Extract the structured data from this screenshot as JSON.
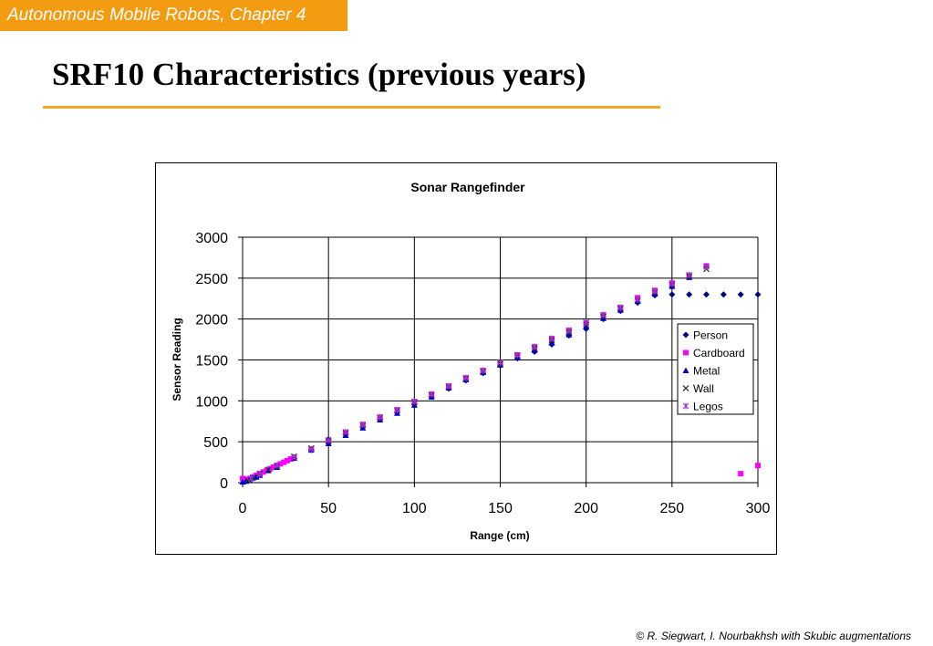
{
  "header": {
    "chapter_label": "Autonomous Mobile Robots, Chapter 4",
    "slide_title": "SRF10 Characteristics (previous years)"
  },
  "footer": {
    "credit": "© R. Siegwart, I. Nourbakhsh with Skubic augmentations"
  },
  "colors": {
    "accent": "#f39c12",
    "rule": "#f5a623"
  },
  "chart_data": {
    "type": "scatter",
    "title": "Sonar Rangefinder",
    "xlabel": "Range (cm)",
    "ylabel": "Sensor Reading",
    "xlim": [
      0,
      300
    ],
    "ylim": [
      0,
      3000
    ],
    "xticks": [
      0,
      50,
      100,
      150,
      200,
      250,
      300
    ],
    "yticks": [
      0,
      500,
      1000,
      1500,
      2000,
      2500,
      3000
    ],
    "grid": true,
    "legend": "right",
    "series": [
      {
        "name": "Person",
        "marker": "diamond",
        "color": "#000080",
        "points": [
          [
            2,
            20
          ],
          [
            4,
            40
          ],
          [
            6,
            60
          ],
          [
            8,
            80
          ],
          [
            10,
            100
          ],
          [
            15,
            150
          ],
          [
            20,
            200
          ],
          [
            30,
            300
          ],
          [
            40,
            400
          ],
          [
            50,
            530
          ],
          [
            60,
            600
          ],
          [
            70,
            690
          ],
          [
            80,
            780
          ],
          [
            90,
            860
          ],
          [
            100,
            960
          ],
          [
            110,
            1050
          ],
          [
            120,
            1150
          ],
          [
            130,
            1250
          ],
          [
            140,
            1340
          ],
          [
            150,
            1430
          ],
          [
            160,
            1520
          ],
          [
            170,
            1600
          ],
          [
            180,
            1690
          ],
          [
            190,
            1800
          ],
          [
            200,
            1880
          ],
          [
            210,
            2000
          ],
          [
            220,
            2100
          ],
          [
            230,
            2200
          ],
          [
            240,
            2290
          ],
          [
            250,
            2300
          ],
          [
            260,
            2300
          ],
          [
            270,
            2300
          ],
          [
            280,
            2300
          ],
          [
            290,
            2300
          ],
          [
            300,
            2300
          ]
        ]
      },
      {
        "name": "Cardboard",
        "marker": "square",
        "color": "#ff00ff",
        "points": [
          [
            0,
            50
          ],
          [
            2,
            40
          ],
          [
            4,
            50
          ],
          [
            6,
            70
          ],
          [
            8,
            90
          ],
          [
            10,
            110
          ],
          [
            12,
            130
          ],
          [
            14,
            150
          ],
          [
            16,
            170
          ],
          [
            18,
            190
          ],
          [
            20,
            210
          ],
          [
            22,
            230
          ],
          [
            24,
            250
          ],
          [
            26,
            270
          ],
          [
            28,
            290
          ],
          [
            30,
            310
          ],
          [
            40,
            410
          ],
          [
            50,
            500
          ],
          [
            60,
            610
          ],
          [
            70,
            710
          ],
          [
            80,
            800
          ],
          [
            90,
            890
          ],
          [
            100,
            990
          ],
          [
            110,
            1080
          ],
          [
            120,
            1180
          ],
          [
            130,
            1280
          ],
          [
            140,
            1370
          ],
          [
            150,
            1460
          ],
          [
            160,
            1560
          ],
          [
            170,
            1660
          ],
          [
            180,
            1760
          ],
          [
            190,
            1860
          ],
          [
            200,
            1950
          ],
          [
            210,
            2050
          ],
          [
            220,
            2140
          ],
          [
            230,
            2260
          ],
          [
            240,
            2350
          ],
          [
            250,
            2440
          ],
          [
            260,
            2530
          ],
          [
            270,
            2650
          ],
          [
            290,
            110
          ],
          [
            300,
            210
          ]
        ]
      },
      {
        "name": "Metal",
        "marker": "triangle",
        "color": "#0000cd",
        "points": [
          [
            0,
            10
          ],
          [
            2,
            20
          ],
          [
            4,
            40
          ],
          [
            6,
            60
          ],
          [
            8,
            70
          ],
          [
            10,
            90
          ],
          [
            15,
            150
          ],
          [
            20,
            190
          ],
          [
            30,
            300
          ],
          [
            40,
            400
          ],
          [
            50,
            480
          ],
          [
            60,
            580
          ],
          [
            70,
            670
          ],
          [
            80,
            770
          ],
          [
            90,
            850
          ],
          [
            100,
            950
          ],
          [
            110,
            1050
          ],
          [
            120,
            1160
          ],
          [
            130,
            1260
          ],
          [
            140,
            1350
          ],
          [
            150,
            1440
          ],
          [
            160,
            1530
          ],
          [
            170,
            1620
          ],
          [
            180,
            1710
          ],
          [
            190,
            1810
          ],
          [
            200,
            1910
          ],
          [
            210,
            2010
          ],
          [
            220,
            2110
          ],
          [
            230,
            2220
          ],
          [
            240,
            2310
          ],
          [
            250,
            2400
          ],
          [
            260,
            2510
          ]
        ]
      },
      {
        "name": "Wall",
        "marker": "x",
        "color": "#333333",
        "points": [
          [
            3,
            30
          ],
          [
            6,
            60
          ],
          [
            10,
            110
          ],
          [
            15,
            160
          ],
          [
            20,
            200
          ],
          [
            30,
            320
          ],
          [
            40,
            420
          ],
          [
            50,
            510
          ],
          [
            60,
            610
          ],
          [
            70,
            700
          ],
          [
            80,
            790
          ],
          [
            90,
            880
          ],
          [
            100,
            980
          ],
          [
            110,
            1070
          ],
          [
            120,
            1170
          ],
          [
            130,
            1270
          ],
          [
            140,
            1360
          ],
          [
            150,
            1450
          ],
          [
            160,
            1550
          ],
          [
            170,
            1640
          ],
          [
            180,
            1740
          ],
          [
            190,
            1840
          ],
          [
            200,
            1930
          ],
          [
            210,
            2030
          ],
          [
            220,
            2130
          ],
          [
            230,
            2230
          ],
          [
            240,
            2330
          ],
          [
            250,
            2420
          ],
          [
            260,
            2520
          ],
          [
            270,
            2610
          ]
        ]
      },
      {
        "name": "Legos",
        "marker": "star",
        "color": "#9932cc",
        "points": [
          [
            5,
            50
          ],
          [
            10,
            100
          ],
          [
            20,
            210
          ],
          [
            30,
            310
          ],
          [
            40,
            410
          ],
          [
            50,
            520
          ],
          [
            60,
            620
          ],
          [
            70,
            710
          ],
          [
            80,
            800
          ],
          [
            90,
            890
          ],
          [
            100,
            990
          ],
          [
            110,
            1080
          ],
          [
            120,
            1180
          ],
          [
            130,
            1280
          ],
          [
            140,
            1370
          ],
          [
            150,
            1470
          ],
          [
            160,
            1560
          ],
          [
            170,
            1660
          ],
          [
            180,
            1760
          ],
          [
            190,
            1860
          ],
          [
            200,
            1960
          ],
          [
            210,
            2050
          ],
          [
            220,
            2140
          ],
          [
            230,
            2240
          ],
          [
            240,
            2340
          ],
          [
            250,
            2430
          ],
          [
            260,
            2540
          ],
          [
            270,
            2640
          ]
        ]
      }
    ]
  }
}
